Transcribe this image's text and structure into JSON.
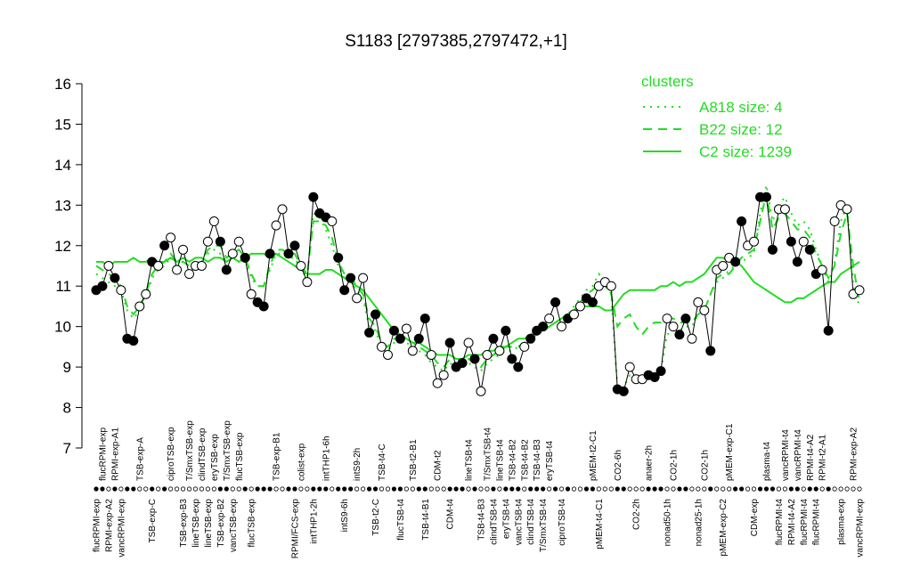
{
  "chart_data": {
    "type": "line",
    "title": "S1183 [2797385,2797472,+1]",
    "ylim": [
      7,
      16
    ],
    "yticks": [
      7,
      8,
      9,
      10,
      11,
      12,
      13,
      14,
      15,
      16
    ],
    "categories": [
      "flucRPMI-exp",
      "flucRPMI-exp",
      "RPMI-exp-A2",
      "RPMI-exp-A1",
      "vancRPMI-exp",
      null,
      null,
      "TSB-exp-A",
      null,
      "TSB-exp-C",
      null,
      null,
      "ciproTSB-exp",
      null,
      "TSB-exp-B3",
      "T/SmxTSB-exp",
      "lineTSB-exp",
      "clindTSB-exp",
      "lineTSB-exp",
      "eryTSB-exp",
      "TSB-exp-B2",
      "T/SmxTSB-exp",
      "vancTSB-exp",
      "flucTSB-exp",
      null,
      "flucTSB-exp",
      null,
      null,
      null,
      "TSB-exp-B1",
      null,
      null,
      "RPMI/FCS-exp",
      "colist-exp",
      null,
      "intTHP1-2h",
      null,
      "intTHP1-6h",
      null,
      null,
      "intS9-6h",
      null,
      "intS9-2h",
      null,
      null,
      "TSB-t2-C",
      "TSB-t4-C",
      null,
      null,
      "flucTSB-t4",
      null,
      "TSB-t2-B1",
      null,
      "TSB-t4-B1",
      null,
      "CDM-t2",
      null,
      "CDM-t4",
      null,
      null,
      "lineTSB-t4",
      null,
      "TSB-t4-B3",
      "T/SmxTSB-t4",
      "clindTSB-t4",
      "lineTSB-t4",
      "eryTSB-t4",
      "TSB-t4-B2",
      "vancTSB-t4",
      "TSB-t4-B2",
      "clindTSB-t4",
      "TSB-t4-B3",
      "T/SmxTSB-t4",
      "eryTSB-t4",
      null,
      "ciproTSB-t4",
      null,
      null,
      null,
      null,
      "pMEM-t2-C1",
      "pMEM-t4-C1",
      null,
      null,
      "CO2-6h",
      null,
      null,
      "CO2-2h",
      null,
      "anaer-2h",
      null,
      null,
      "nonad50-1h",
      "CO2-1h",
      null,
      null,
      null,
      "nonad25-1h",
      "CO2-1h",
      null,
      null,
      "pMEM-exp-C2",
      "pMEM-exp-C1",
      null,
      null,
      null,
      "CDM-exp",
      null,
      "plasma-t4",
      null,
      "flucRPMI-t4",
      "vancRPMI-t4",
      "RPMI-t4-A2",
      "vancRPMI-t4",
      "flucRPMI-t4",
      "RPMI-t4-A2",
      "flucRPMI-t4",
      "RPMI-t2-A1",
      null,
      null,
      "plasma-exp",
      null,
      "RPMI-exp-A2",
      "vancRPMI-exp"
    ],
    "values": [
      10.9,
      11.0,
      11.5,
      11.2,
      10.9,
      9.7,
      9.65,
      10.5,
      10.8,
      11.6,
      11.5,
      12.0,
      12.2,
      11.4,
      11.9,
      11.3,
      11.5,
      11.5,
      12.1,
      12.6,
      12.1,
      11.4,
      11.8,
      12.1,
      11.7,
      10.8,
      10.6,
      10.5,
      11.8,
      12.5,
      12.9,
      11.8,
      12.0,
      11.5,
      11.1,
      13.2,
      12.8,
      12.7,
      12.6,
      11.7,
      10.9,
      11.2,
      10.7,
      11.2,
      9.85,
      10.3,
      9.5,
      9.3,
      9.9,
      9.7,
      9.95,
      9.4,
      9.7,
      10.2,
      9.3,
      8.6,
      8.8,
      9.6,
      9.0,
      9.1,
      9.6,
      9.2,
      8.4,
      9.3,
      9.7,
      9.4,
      9.9,
      9.2,
      9.0,
      9.5,
      9.7,
      9.9,
      10.0,
      10.2,
      10.6,
      10.0,
      10.2,
      10.3,
      10.5,
      10.7,
      10.6,
      11.0,
      11.1,
      11.0,
      8.45,
      8.4,
      9.0,
      8.7,
      8.7,
      8.8,
      8.75,
      8.9,
      10.2,
      10.0,
      9.8,
      10.2,
      9.7,
      10.6,
      10.4,
      9.4,
      11.4,
      11.5,
      11.7,
      11.6,
      12.6,
      12.0,
      12.1,
      13.2,
      13.2,
      11.9,
      12.9,
      12.9,
      12.1,
      11.6,
      12.1,
      11.9,
      11.3,
      11.4,
      9.9,
      12.6,
      13.0,
      12.9,
      10.8,
      10.9
    ],
    "filled": [
      true,
      true,
      false,
      true,
      false,
      true,
      true,
      false,
      false,
      true,
      false,
      true,
      false,
      false,
      false,
      false,
      false,
      false,
      false,
      false,
      true,
      true,
      false,
      false,
      true,
      false,
      true,
      true,
      true,
      false,
      false,
      true,
      true,
      false,
      false,
      true,
      true,
      true,
      false,
      true,
      true,
      true,
      false,
      false,
      true,
      true,
      false,
      false,
      true,
      true,
      false,
      false,
      true,
      true,
      false,
      false,
      false,
      true,
      true,
      true,
      false,
      true,
      false,
      false,
      true,
      false,
      true,
      true,
      true,
      false,
      true,
      true,
      true,
      false,
      true,
      false,
      true,
      false,
      false,
      true,
      true,
      false,
      false,
      false,
      true,
      true,
      false,
      false,
      false,
      true,
      true,
      true,
      false,
      false,
      true,
      true,
      false,
      false,
      false,
      true,
      false,
      false,
      false,
      true,
      true,
      false,
      false,
      true,
      true,
      true,
      false,
      false,
      true,
      true,
      false,
      true,
      true,
      false,
      true,
      false,
      false,
      false,
      false,
      false
    ],
    "color": "#000000",
    "legend_title": "clusters",
    "series": [
      {
        "name": "A818 size: 4",
        "color": "#22dd22",
        "dash": "dotted",
        "values": [
          11.3,
          11.2,
          11.1,
          11.0,
          10.9,
          10.4,
          10.2,
          10.4,
          10.7,
          11.2,
          11.4,
          11.5,
          11.7,
          11.6,
          11.6,
          11.5,
          11.5,
          11.6,
          11.8,
          11.9,
          11.8,
          11.6,
          11.7,
          11.8,
          11.6,
          11.2,
          11.0,
          11.0,
          11.4,
          11.8,
          11.8,
          11.7,
          11.7,
          11.4,
          11.2,
          12.8,
          12.7,
          12.4,
          12.0,
          11.5,
          11.2,
          11.1,
          10.9,
          10.7,
          10.0,
          9.9,
          9.5,
          9.4,
          9.6,
          9.6,
          9.6,
          9.5,
          9.4,
          9.3,
          9.1,
          9.0,
          8.9,
          9.1,
          9.0,
          9.1,
          9.1,
          9.0,
          8.9,
          9.1,
          9.2,
          9.3,
          9.4,
          9.4,
          9.5,
          9.6,
          9.7,
          9.8,
          9.9,
          10.0,
          10.1,
          10.2,
          10.3,
          10.5,
          10.7,
          10.9,
          11.0,
          11.3,
          11.1,
          10.8,
          8.5,
          8.5,
          8.8,
          8.8,
          8.8,
          8.8,
          8.8,
          8.9,
          9.8,
          9.9,
          9.9,
          10.0,
          10.0,
          10.3,
          10.4,
          10.8,
          11.1,
          11.2,
          11.4,
          11.5,
          11.6,
          11.7,
          11.8,
          12.8,
          13.5,
          12.6,
          13.0,
          13.2,
          12.8,
          12.5,
          12.6,
          12.4,
          11.9,
          11.5,
          11.1,
          11.6,
          12.6,
          13.0,
          11.0,
          10.5
        ]
      },
      {
        "name": "B22 size: 12",
        "color": "#22dd22",
        "dash": "dashed",
        "values": [
          11.5,
          11.4,
          11.3,
          11.2,
          11.0,
          10.5,
          10.3,
          10.5,
          10.8,
          11.3,
          11.5,
          11.6,
          11.8,
          11.6,
          11.6,
          11.5,
          11.5,
          11.6,
          11.9,
          12.0,
          12.0,
          11.7,
          11.8,
          11.9,
          11.7,
          11.3,
          11.0,
          11.0,
          11.5,
          11.9,
          11.9,
          11.8,
          11.8,
          11.5,
          11.3,
          12.6,
          12.6,
          12.5,
          12.2,
          11.6,
          11.3,
          11.2,
          11.0,
          10.8,
          10.2,
          10.0,
          9.6,
          9.5,
          9.7,
          9.7,
          9.7,
          9.6,
          9.5,
          9.4,
          9.3,
          9.1,
          9.0,
          9.2,
          9.1,
          9.1,
          9.2,
          9.1,
          9.0,
          9.2,
          9.3,
          9.4,
          9.5,
          9.5,
          9.5,
          9.6,
          9.7,
          9.8,
          9.9,
          10.0,
          10.1,
          10.2,
          10.3,
          10.4,
          10.6,
          10.8,
          10.9,
          11.1,
          11.0,
          10.8,
          10.0,
          10.2,
          10.3,
          10.0,
          9.8,
          10.0,
          10.1,
          10.1,
          10.2,
          10.2,
          10.1,
          10.1,
          10.1,
          10.3,
          10.4,
          10.8,
          11.2,
          11.3,
          11.3,
          11.5,
          11.7,
          11.8,
          11.9,
          12.6,
          13.3,
          12.4,
          12.7,
          12.8,
          12.6,
          12.4,
          12.4,
          12.2,
          11.8,
          11.5,
          11.2,
          11.5,
          12.3,
          12.8,
          11.5,
          10.6
        ]
      },
      {
        "name": "C2 size: 1239",
        "color": "#22dd22",
        "dash": "solid",
        "values": [
          11.6,
          11.6,
          11.5,
          11.6,
          11.6,
          11.6,
          11.7,
          11.6,
          11.6,
          11.7,
          11.6,
          11.6,
          11.7,
          11.6,
          11.7,
          11.6,
          11.7,
          11.7,
          11.6,
          11.7,
          11.7,
          11.6,
          11.7,
          11.6,
          11.7,
          11.8,
          11.8,
          11.8,
          11.7,
          11.8,
          11.7,
          11.6,
          11.5,
          11.4,
          11.3,
          11.3,
          11.3,
          11.4,
          11.4,
          11.3,
          11.2,
          11.1,
          11.0,
          10.9,
          10.7,
          10.5,
          10.3,
          10.1,
          9.9,
          9.8,
          9.7,
          9.6,
          9.6,
          9.5,
          9.4,
          9.3,
          9.3,
          9.3,
          9.2,
          9.2,
          9.3,
          9.3,
          9.3,
          9.4,
          9.4,
          9.5,
          9.5,
          9.6,
          9.7,
          9.7,
          9.8,
          9.9,
          9.9,
          10.0,
          10.1,
          10.2,
          10.3,
          10.4,
          10.5,
          10.5,
          10.5,
          10.5,
          10.4,
          10.4,
          10.6,
          10.8,
          10.9,
          10.9,
          10.9,
          10.9,
          10.9,
          11.0,
          11.0,
          11.1,
          11.0,
          11.1,
          11.1,
          11.2,
          11.3,
          11.5,
          11.7,
          11.7,
          11.6,
          11.6,
          11.5,
          11.3,
          11.1,
          11.0,
          10.9,
          10.8,
          10.7,
          10.6,
          10.6,
          10.7,
          10.7,
          10.8,
          10.9,
          11.0,
          11.1,
          11.1,
          11.3,
          11.4,
          11.5,
          11.6
        ]
      }
    ]
  }
}
